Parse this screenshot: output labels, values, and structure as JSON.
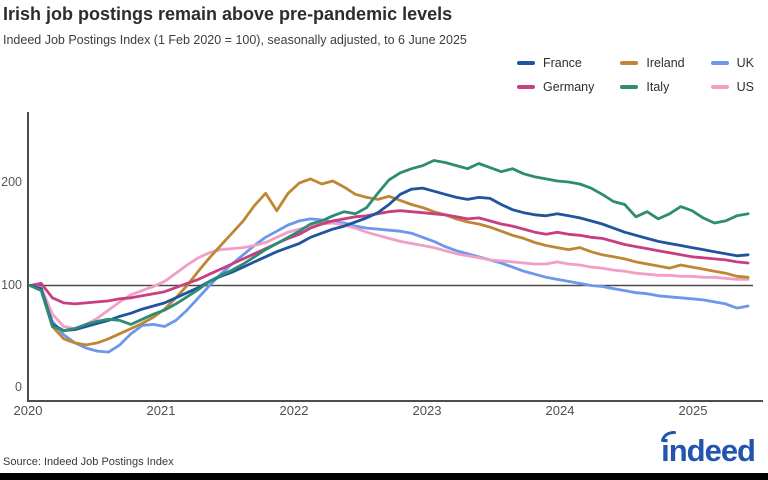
{
  "header": {
    "title": "Irish job postings remain above pre-pandemic levels",
    "subtitle": "Indeed Job Postings Index (1 Feb 2020 = 100), seasonally adjusted, to 6 June 2025"
  },
  "legend": [
    {
      "label": "France",
      "color": "#20549f"
    },
    {
      "label": "Ireland",
      "color": "#bf8735"
    },
    {
      "label": "UK",
      "color": "#6d97ea"
    },
    {
      "label": "Germany",
      "color": "#c73f80"
    },
    {
      "label": "Italy",
      "color": "#2e8b74"
    },
    {
      "label": "US",
      "color": "#f09fc6"
    }
  ],
  "chart_data": {
    "type": "line",
    "title": "Irish job postings remain above pre-pandemic levels",
    "subtitle": "Indeed Job Postings Index (1 Feb 2020 = 100), seasonally adjusted, to 6 June 2025",
    "x_unit": "monthly",
    "x_start": "2020-02",
    "x_end": "2025-06",
    "x_tick_labels": [
      "2020",
      "2021",
      "2022",
      "2023",
      "2024",
      "2025"
    ],
    "y_tick_labels": [
      "0",
      "100",
      "200"
    ],
    "y_ticks": [
      0,
      100,
      200
    ],
    "ylim": [
      -12,
      268
    ],
    "reference_line": 100,
    "grid": false,
    "legend_position": "top-right",
    "series": [
      {
        "name": "UK",
        "color": "#6d97ea",
        "values": [
          100,
          98,
          65,
          52,
          44,
          39,
          36,
          35,
          42,
          53,
          61,
          62,
          60,
          66,
          76,
          88,
          100,
          111,
          121,
          130,
          139,
          147,
          153,
          159,
          163,
          165,
          164,
          162,
          161,
          158,
          156,
          155,
          154,
          153,
          151,
          147,
          143,
          138,
          134,
          131,
          128,
          125,
          122,
          118,
          114,
          111,
          108,
          106,
          104,
          102,
          100,
          99,
          97,
          95,
          93,
          92,
          90,
          89,
          88,
          87,
          86,
          84,
          82,
          78,
          80
        ]
      },
      {
        "name": "US",
        "color": "#f09fc6",
        "values": [
          100,
          98,
          72,
          60,
          58,
          62,
          68,
          76,
          84,
          91,
          95,
          99,
          104,
          112,
          120,
          127,
          132,
          135,
          136,
          137,
          139,
          142,
          147,
          152,
          155,
          158,
          160,
          161,
          159,
          156,
          152,
          149,
          146,
          143,
          141,
          139,
          137,
          134,
          131,
          129,
          127,
          125,
          124,
          123,
          122,
          121,
          121,
          123,
          121,
          120,
          118,
          117,
          115,
          114,
          112,
          111,
          110,
          110,
          109,
          109,
          108,
          108,
          107,
          106,
          106
        ]
      },
      {
        "name": "Ireland",
        "color": "#bf8735",
        "values": [
          100,
          96,
          60,
          48,
          44,
          42,
          44,
          48,
          53,
          58,
          63,
          69,
          77,
          88,
          100,
          114,
          127,
          139,
          151,
          163,
          178,
          190,
          173,
          190,
          200,
          204,
          199,
          202,
          196,
          189,
          186,
          184,
          187,
          183,
          179,
          176,
          172,
          169,
          165,
          162,
          160,
          157,
          153,
          149,
          146,
          142,
          139,
          137,
          135,
          137,
          133,
          130,
          128,
          126,
          123,
          121,
          119,
          117,
          120,
          118,
          116,
          114,
          112,
          109,
          108
        ]
      },
      {
        "name": "Germany",
        "color": "#c73f80",
        "values": [
          100,
          102,
          88,
          83,
          82,
          83,
          84,
          85,
          87,
          88,
          90,
          92,
          94,
          98,
          102,
          106,
          111,
          116,
          121,
          126,
          131,
          136,
          141,
          146,
          150,
          156,
          160,
          163,
          165,
          167,
          168,
          170,
          172,
          173,
          172,
          171,
          170,
          169,
          167,
          165,
          166,
          163,
          160,
          158,
          155,
          152,
          150,
          152,
          150,
          149,
          147,
          146,
          143,
          140,
          138,
          136,
          134,
          132,
          130,
          128,
          127,
          126,
          125,
          123,
          122
        ]
      },
      {
        "name": "France",
        "color": "#20549f",
        "values": [
          100,
          97,
          62,
          56,
          57,
          60,
          63,
          66,
          70,
          73,
          77,
          80,
          83,
          88,
          93,
          98,
          104,
          109,
          113,
          118,
          123,
          128,
          133,
          137,
          141,
          147,
          151,
          155,
          158,
          162,
          166,
          171,
          179,
          189,
          194,
          195,
          192,
          189,
          186,
          184,
          186,
          185,
          179,
          174,
          171,
          169,
          168,
          170,
          168,
          166,
          163,
          160,
          156,
          152,
          149,
          146,
          143,
          141,
          139,
          137,
          135,
          133,
          131,
          129,
          130
        ]
      },
      {
        "name": "Italy",
        "color": "#2e8b74",
        "values": [
          100,
          95,
          60,
          56,
          58,
          62,
          65,
          67,
          66,
          62,
          67,
          72,
          76,
          82,
          89,
          96,
          104,
          110,
          115,
          121,
          128,
          135,
          141,
          147,
          153,
          160,
          163,
          168,
          172,
          170,
          176,
          190,
          203,
          210,
          214,
          217,
          222,
          220,
          217,
          214,
          219,
          215,
          211,
          214,
          209,
          206,
          204,
          202,
          201,
          199,
          195,
          189,
          182,
          179,
          167,
          172,
          165,
          170,
          177,
          173,
          166,
          161,
          163,
          168,
          170
        ]
      }
    ]
  },
  "footer": {
    "source": "Source: Indeed Job Postings Index",
    "logo_text": "indeed",
    "logo_color": "#2355af"
  }
}
